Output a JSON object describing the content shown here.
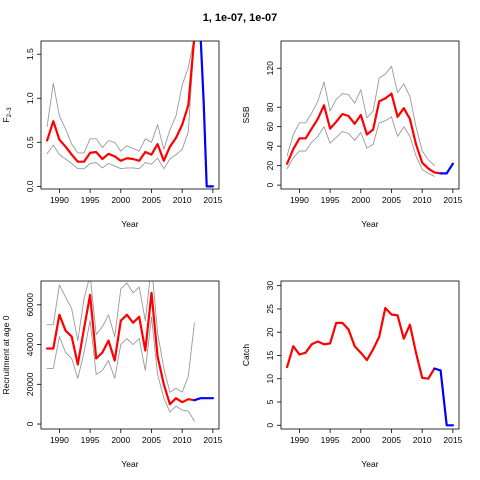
{
  "figure": {
    "title": "1, 1e-07, 1e-07",
    "colors": {
      "estimate": "#ff0000",
      "projection": "#0000ff",
      "ci": "#999999"
    }
  },
  "chart_data": [
    {
      "type": "line",
      "ylabel": "F2-3",
      "ylabel_main": "F",
      "ylabel_sub": "2–3",
      "xlabel": "Year",
      "xlim": [
        1987,
        2016
      ],
      "ylim": [
        -0.03,
        1.65
      ],
      "xticks": [
        1990,
        1995,
        2000,
        2005,
        2010,
        2015
      ],
      "yticks": [
        0.0,
        0.5,
        1.0,
        1.5
      ],
      "ytick_labels": [
        "0.0",
        "0.5",
        "1.0",
        "1.5"
      ],
      "series": [
        {
          "role": "estimate",
          "color": "red",
          "x": [
            1988,
            1989,
            1990,
            1991,
            1992,
            1993,
            1994,
            1995,
            1996,
            1997,
            1998,
            1999,
            2000,
            2001,
            2002,
            2003,
            2004,
            2005,
            2006,
            2007,
            2008,
            2009,
            2010,
            2011,
            2012
          ],
          "values": [
            0.52,
            0.74,
            0.53,
            0.45,
            0.36,
            0.28,
            0.28,
            0.38,
            0.39,
            0.31,
            0.37,
            0.34,
            0.29,
            0.32,
            0.31,
            0.29,
            0.39,
            0.36,
            0.48,
            0.29,
            0.45,
            0.55,
            0.7,
            0.92,
            1.7
          ]
        },
        {
          "role": "ci_upper",
          "color": "grey",
          "x": [
            1988,
            1989,
            1990,
            1991,
            1992,
            1993,
            1994,
            1995,
            1996,
            1997,
            1998,
            1999,
            2000,
            2001,
            2002,
            2003,
            2004,
            2005,
            2006,
            2007,
            2008,
            2009,
            2010,
            2011,
            2012
          ],
          "values": [
            0.68,
            1.17,
            0.8,
            0.65,
            0.48,
            0.38,
            0.38,
            0.54,
            0.54,
            0.44,
            0.52,
            0.5,
            0.4,
            0.46,
            0.43,
            0.4,
            0.54,
            0.5,
            0.7,
            0.42,
            0.64,
            0.8,
            1.15,
            1.35,
            1.7
          ]
        },
        {
          "role": "ci_lower",
          "color": "grey",
          "x": [
            1988,
            1989,
            1990,
            1991,
            1992,
            1993,
            1994,
            1995,
            1996,
            1997,
            1998,
            1999,
            2000,
            2001,
            2002,
            2003,
            2004,
            2005,
            2006,
            2007,
            2008,
            2009,
            2010,
            2011,
            2012
          ],
          "values": [
            0.37,
            0.47,
            0.36,
            0.31,
            0.26,
            0.2,
            0.2,
            0.26,
            0.27,
            0.21,
            0.26,
            0.23,
            0.2,
            0.21,
            0.21,
            0.2,
            0.27,
            0.25,
            0.32,
            0.2,
            0.31,
            0.36,
            0.42,
            0.62,
            1.7
          ]
        },
        {
          "role": "projection",
          "color": "blue",
          "x": [
            2012.8,
            2013,
            2013.5,
            2014,
            2015
          ],
          "values": [
            1.7,
            1.7,
            0.95,
            0.0,
            0.0
          ]
        }
      ]
    },
    {
      "type": "line",
      "ylabel": "SSB",
      "xlabel": "Year",
      "xlim": [
        1987,
        2016
      ],
      "ylim": [
        -4,
        148
      ],
      "xticks": [
        1990,
        1995,
        2000,
        2005,
        2010,
        2015
      ],
      "yticks": [
        0,
        20,
        40,
        60,
        80,
        120
      ],
      "ytick_labels": [
        "0",
        "20",
        "40",
        "60",
        "80",
        "120"
      ],
      "series": [
        {
          "role": "estimate",
          "color": "red",
          "x": [
            1988,
            1989,
            1990,
            1991,
            1992,
            1993,
            1994,
            1995,
            1996,
            1997,
            1998,
            1999,
            2000,
            2001,
            2002,
            2003,
            2004,
            2005,
            2006,
            2007,
            2008,
            2009,
            2010,
            2011,
            2012,
            2013
          ],
          "values": [
            22,
            37,
            48,
            48,
            58,
            68,
            82,
            58,
            65,
            73,
            71,
            63,
            72,
            52,
            57,
            86,
            89,
            94,
            70,
            79,
            68,
            42,
            23,
            17,
            13,
            12
          ]
        },
        {
          "role": "ci_upper",
          "color": "grey",
          "x": [
            1988,
            1989,
            1990,
            1991,
            1992,
            1993,
            1994,
            1995,
            1996,
            1997,
            1998,
            1999,
            2000,
            2001,
            2002,
            2003,
            2004,
            2005,
            2006,
            2007,
            2008,
            2009,
            2010,
            2011,
            2012
          ],
          "values": [
            30,
            52,
            64,
            64,
            74,
            86,
            106,
            76,
            88,
            94,
            93,
            84,
            98,
            69,
            76,
            110,
            114,
            122,
            95,
            104,
            91,
            60,
            35,
            26,
            20
          ]
        },
        {
          "role": "ci_lower",
          "color": "grey",
          "x": [
            1988,
            1989,
            1990,
            1991,
            1992,
            1993,
            1994,
            1995,
            1996,
            1997,
            1998,
            1999,
            2000,
            2001,
            2002,
            2003,
            2004,
            2005,
            2006,
            2007,
            2008,
            2009,
            2010,
            2011,
            2012
          ],
          "values": [
            17,
            28,
            35,
            35,
            44,
            50,
            60,
            43,
            49,
            55,
            53,
            46,
            54,
            38,
            42,
            64,
            66,
            70,
            50,
            60,
            50,
            30,
            16,
            12,
            9
          ]
        },
        {
          "role": "projection",
          "color": "blue",
          "x": [
            2013,
            2014,
            2015
          ],
          "values": [
            12,
            12,
            22
          ]
        }
      ]
    },
    {
      "type": "line",
      "ylabel": "Recruitment at age 0",
      "xlabel": "Year",
      "xlim": [
        1987,
        2016
      ],
      "ylim": [
        -2500,
        72000
      ],
      "xticks": [
        1990,
        1995,
        2000,
        2005,
        2010,
        2015
      ],
      "yticks": [
        0,
        20000,
        40000,
        60000
      ],
      "ytick_labels": [
        "0",
        "20000",
        "40000",
        "60000"
      ],
      "series": [
        {
          "role": "estimate",
          "color": "red",
          "x": [
            1988,
            1989,
            1990,
            1991,
            1992,
            1993,
            1994,
            1995,
            1996,
            1997,
            1998,
            1999,
            2000,
            2001,
            2002,
            2003,
            2004,
            2005,
            2006,
            2007,
            2008,
            2009,
            2010,
            2011,
            2012
          ],
          "values": [
            38000,
            38000,
            55000,
            47000,
            44000,
            30000,
            48000,
            65000,
            33000,
            36000,
            42000,
            32000,
            52000,
            55000,
            51000,
            54000,
            37000,
            66000,
            34000,
            20000,
            10000,
            13000,
            11000,
            12500,
            12000
          ]
        },
        {
          "role": "ci_upper",
          "color": "grey",
          "x": [
            1988,
            1989,
            1990,
            1991,
            1992,
            1993,
            1994,
            1995,
            1996,
            1997,
            1998,
            1999,
            2000,
            2001,
            2002,
            2003,
            2004,
            2005,
            2006,
            2007,
            2008,
            2009,
            2010,
            2011,
            2012
          ],
          "values": [
            50000,
            50000,
            70000,
            64000,
            58000,
            42000,
            63000,
            75000,
            45000,
            49000,
            55000,
            44000,
            68000,
            71000,
            66000,
            69000,
            52000,
            80000,
            46000,
            28000,
            16000,
            18000,
            16000,
            24000,
            51000
          ]
        },
        {
          "role": "ci_lower",
          "color": "grey",
          "x": [
            1988,
            1989,
            1990,
            1991,
            1992,
            1993,
            1994,
            1995,
            1996,
            1997,
            1998,
            1999,
            2000,
            2001,
            2002,
            2003,
            2004,
            2005,
            2006,
            2007,
            2008,
            2009,
            2010,
            2011,
            2012
          ],
          "values": [
            28000,
            28000,
            44000,
            36000,
            33000,
            23000,
            36000,
            52000,
            25000,
            27000,
            32000,
            23000,
            40000,
            43000,
            40000,
            43000,
            27000,
            54000,
            25000,
            13000,
            6000,
            9000,
            7000,
            6500,
            1500
          ]
        },
        {
          "role": "projection",
          "color": "blue",
          "x": [
            2012,
            2013,
            2014,
            2015
          ],
          "values": [
            12000,
            13000,
            13000,
            13000
          ]
        }
      ]
    },
    {
      "type": "line",
      "ylabel": "Catch",
      "xlabel": "Year",
      "xlim": [
        1987,
        2016
      ],
      "ylim": [
        -0.8,
        31
      ],
      "xticks": [
        1990,
        1995,
        2000,
        2005,
        2010,
        2015
      ],
      "yticks": [
        0,
        5,
        10,
        15,
        20,
        25,
        30
      ],
      "ytick_labels": [
        "0",
        "5",
        "10",
        "15",
        "20",
        "25",
        "30"
      ],
      "series": [
        {
          "role": "estimate",
          "color": "red",
          "x": [
            1988,
            1989,
            1990,
            1991,
            1992,
            1993,
            1994,
            1995,
            1996,
            1997,
            1998,
            1999,
            2000,
            2001,
            2002,
            2003,
            2004,
            2005,
            2006,
            2007,
            2008,
            2009,
            2010,
            2011,
            2012
          ],
          "values": [
            12.5,
            17,
            15.2,
            15.6,
            17.4,
            18,
            17.4,
            17.6,
            22,
            22,
            20.6,
            17,
            15.6,
            14,
            16.3,
            19,
            25.2,
            23.8,
            23.6,
            18.6,
            21.6,
            15.6,
            10.2,
            10,
            12.2
          ]
        },
        {
          "role": "projection",
          "color": "blue",
          "x": [
            2012,
            2013,
            2014,
            2015
          ],
          "values": [
            12.2,
            11.8,
            0,
            0
          ]
        }
      ]
    }
  ]
}
